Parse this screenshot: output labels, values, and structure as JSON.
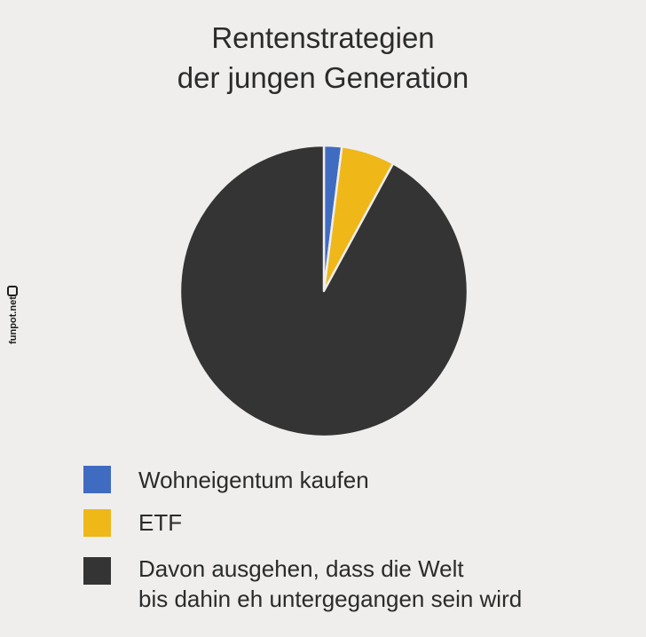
{
  "chart_data": {
    "type": "pie",
    "title_lines": [
      "Rentenstrategien",
      "der jungen Generation"
    ],
    "slices": [
      {
        "label": "Wohneigentum kaufen",
        "value": 2,
        "color": "#3f6bc1"
      },
      {
        "label": "ETF",
        "value": 6,
        "color": "#f0b719"
      },
      {
        "label": "Davon ausgehen, dass die Welt bis dahin eh untergegangen sein wird",
        "label_lines": [
          "Davon ausgehen, dass die Welt",
          "bis dahin eh untergegangen sein wird"
        ],
        "value": 92,
        "color": "#343434"
      }
    ],
    "start_angle": "12 o'clock",
    "direction": "clockwise",
    "legend_position": "bottom-left"
  },
  "watermark": {
    "text": "funpot.net",
    "icon": "funpot-logo-icon"
  }
}
